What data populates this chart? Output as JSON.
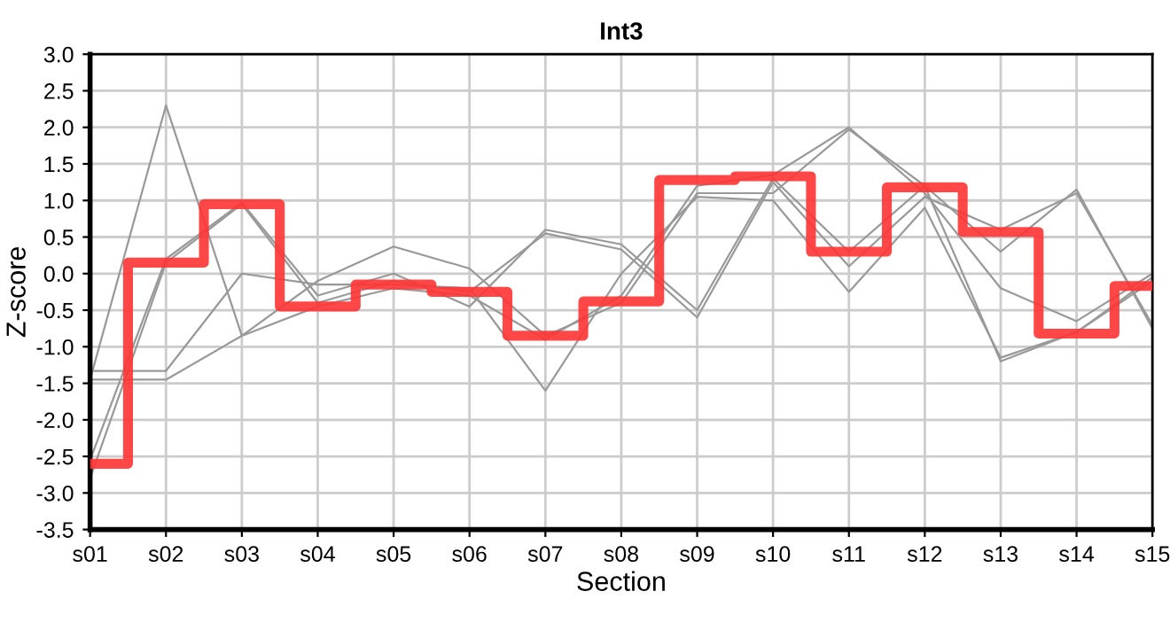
{
  "chart_data": {
    "type": "line",
    "title": "Int3",
    "xlabel": "Section",
    "ylabel": "Z-score",
    "categories": [
      "s01",
      "s02",
      "s03",
      "s04",
      "s05",
      "s06",
      "s07",
      "s08",
      "s09",
      "s10",
      "s11",
      "s12",
      "s13",
      "s14",
      "s15"
    ],
    "series": [
      {
        "color": "#999999",
        "values": [
          -1.45,
          2.3,
          -0.85,
          -0.45,
          -0.2,
          -0.3,
          -0.9,
          -0.3,
          1.2,
          1.35,
          2.0,
          1.1,
          -0.2,
          -0.65,
          0.0
        ]
      },
      {
        "color": "#999999",
        "values": [
          -2.55,
          0.2,
          0.97,
          -0.3,
          0.0,
          -0.45,
          0.6,
          0.4,
          -0.5,
          1.3,
          0.3,
          1.2,
          0.3,
          1.15,
          -0.75
        ]
      },
      {
        "color": "#999999",
        "values": [
          -2.8,
          0.15,
          0.95,
          -0.4,
          -0.1,
          -0.25,
          0.55,
          0.33,
          -0.6,
          1.25,
          0.1,
          1.05,
          0.6,
          1.1,
          -0.7
        ]
      },
      {
        "color": "#999999",
        "values": [
          -1.33,
          -1.33,
          0.0,
          -0.15,
          -0.15,
          -0.2,
          -1.6,
          0.0,
          1.05,
          1.0,
          -0.25,
          0.9,
          -1.15,
          -0.8,
          -0.1
        ]
      },
      {
        "color": "#999999",
        "values": [
          -1.45,
          -1.45,
          -0.85,
          -0.1,
          0.37,
          0.07,
          -0.85,
          -0.4,
          1.1,
          1.1,
          1.97,
          1.2,
          -1.2,
          -0.8,
          -0.05
        ]
      },
      {
        "type": "step",
        "color": "#ff3333",
        "values": [
          -2.6,
          0.15,
          0.95,
          -0.45,
          -0.15,
          -0.25,
          -0.85,
          -0.38,
          1.28,
          1.33,
          0.3,
          1.18,
          0.57,
          -0.82,
          -0.17
        ]
      }
    ],
    "ylim": [
      -3.5,
      3.0
    ],
    "yticks": [
      {
        "value": -3.5,
        "label": "-3.5"
      },
      {
        "value": -3.0,
        "label": "-3.0"
      },
      {
        "value": -2.5,
        "label": "-2.5"
      },
      {
        "value": -2.0,
        "label": "-2.0"
      },
      {
        "value": -1.5,
        "label": "-1.5"
      },
      {
        "value": -1.0,
        "label": "-1.0"
      },
      {
        "value": -0.5,
        "label": "-0.5"
      },
      {
        "value": 0,
        "label": "0.0"
      },
      {
        "value": 0.5,
        "label": "0.5"
      },
      {
        "value": 1.0,
        "label": "1.0"
      },
      {
        "value": 1.5,
        "label": "1.5"
      },
      {
        "value": 2.0,
        "label": "2.0"
      },
      {
        "value": 2.5,
        "label": "2.5"
      },
      {
        "value": 3.0,
        "label": "3.0"
      }
    ],
    "grid": true,
    "marker": "none",
    "line_style": "solid"
  }
}
